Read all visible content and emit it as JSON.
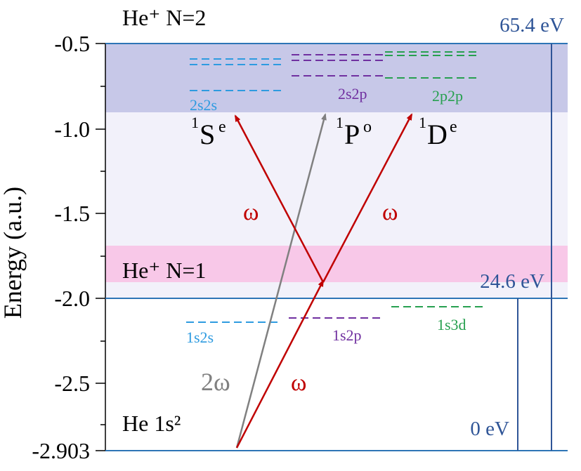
{
  "colors": {
    "axis": "#2e75b6",
    "s_blue": "#2e9be0",
    "p_purple": "#7030a0",
    "d_green": "#27a050",
    "arrow_red": "#c00000",
    "arrow_gray": "#808080",
    "n2_band": "#c7c8e8",
    "n1_band": "#f8c8e8",
    "cont_band": "#f2f1fa",
    "ev_text": "#2f5597"
  },
  "axis": {
    "ylabel": "Energy (a.u.)",
    "ticks": [
      "-0.5",
      "-1.0",
      "-1.5",
      "-2.0",
      "-2.5",
      "-2.903"
    ]
  },
  "regions": {
    "n2": "He⁺ N=2",
    "n1": "He⁺ N=1",
    "ground": "He 1s²"
  },
  "energies_ev": {
    "top": "65.4 eV",
    "middle": "24.6 eV",
    "bottom": "0 eV"
  },
  "states": {
    "s_upper": "2s2s",
    "p_upper": "2s2p",
    "d_upper": "2p2p",
    "s_lower": "1s2s",
    "p_lower": "1s2p",
    "d_lower": "1s3d"
  },
  "symmetries": {
    "S": {
      "sup": "1",
      "base": "S",
      "exp": "e"
    },
    "P": {
      "sup": "1",
      "base": "P",
      "exp": "o"
    },
    "D": {
      "sup": "1",
      "base": "D",
      "exp": "e"
    }
  },
  "photons": {
    "omega": "ω",
    "two_omega": "2ω"
  }
}
